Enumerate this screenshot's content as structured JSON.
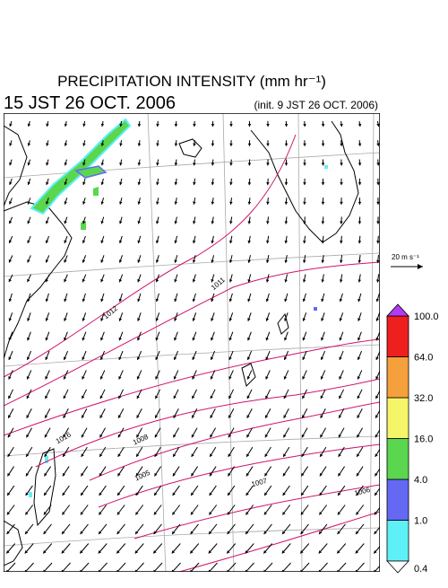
{
  "header": {
    "title": "PRECIPITATION INTENSITY (mm hr⁻¹)",
    "valid_time": "15 JST 26 OCT. 2006",
    "init_time": "(init. 9 JST 26 OCT. 2006)"
  },
  "wind_scale": {
    "label": "20 m s⁻¹"
  },
  "isobar_labels": [
    "1012",
    "1011",
    "1016",
    "1008",
    "1005",
    "1007",
    "1006"
  ],
  "colorbar": {
    "levels": [
      {
        "value": 0.4,
        "label": "0.4"
      },
      {
        "value": 1,
        "label": "1.0"
      },
      {
        "value": 4,
        "label": "4.0"
      },
      {
        "value": 16,
        "label": "16.0"
      },
      {
        "value": 32,
        "label": "32.0"
      },
      {
        "value": 64,
        "label": "64.0"
      },
      {
        "value": 100,
        "label": "100.0"
      }
    ],
    "colors": [
      "#5ff0f7",
      "#6468f2",
      "#5ad64f",
      "#f5f56a",
      "#f5a03c",
      "#ee1f1f"
    ],
    "under_color": "#ffffff",
    "over_color": "#b23cf5"
  }
}
